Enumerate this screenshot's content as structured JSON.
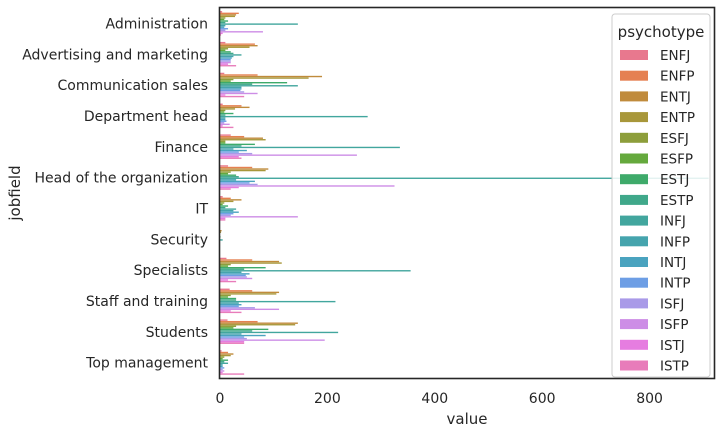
{
  "chart_data": {
    "type": "bar",
    "orientation": "horizontal",
    "xlabel": "value",
    "ylabel": "jobfield",
    "xlim": [
      0,
      920
    ],
    "xticks": [
      0,
      200,
      400,
      600,
      800
    ],
    "grid": false,
    "legend": {
      "title": "psychotype",
      "placement": "top-right"
    },
    "categories": [
      "Administration",
      "Advertising and marketing",
      "Communication sales",
      "Department head",
      "Finance",
      "Head of the organization",
      "IT",
      "Security",
      "Specialists",
      "Staff and training",
      "Students",
      "Top management"
    ],
    "series": [
      {
        "name": "ENFJ",
        "color": "#e8788e",
        "values": [
          4,
          10,
          8,
          5,
          20,
          15,
          5,
          0,
          12,
          18,
          14,
          3
        ]
      },
      {
        "name": "ENFP",
        "color": "#e58152",
        "values": [
          35,
          65,
          70,
          40,
          45,
          60,
          20,
          0,
          60,
          60,
          70,
          15
        ]
      },
      {
        "name": "ENTJ",
        "color": "#c08b3c",
        "values": [
          30,
          70,
          190,
          55,
          80,
          90,
          40,
          3,
          110,
          110,
          145,
          25
        ]
      },
      {
        "name": "ENTP",
        "color": "#a8973a",
        "values": [
          28,
          55,
          165,
          28,
          85,
          85,
          25,
          2,
          115,
          105,
          140,
          20
        ]
      },
      {
        "name": "ESFJ",
        "color": "#8d9e3b",
        "values": [
          10,
          15,
          25,
          10,
          10,
          20,
          8,
          0,
          20,
          20,
          30,
          8
        ]
      },
      {
        "name": "ESFP",
        "color": "#65a93d",
        "values": [
          8,
          10,
          20,
          8,
          10,
          15,
          5,
          0,
          15,
          15,
          25,
          5
        ]
      },
      {
        "name": "ESTJ",
        "color": "#3eaa6a",
        "values": [
          15,
          20,
          125,
          25,
          65,
          30,
          15,
          1,
          85,
          30,
          90,
          15
        ]
      },
      {
        "name": "ESTP",
        "color": "#40a88a",
        "values": [
          10,
          25,
          60,
          10,
          40,
          35,
          10,
          0,
          45,
          30,
          60,
          8
        ]
      },
      {
        "name": "INFJ",
        "color": "#42a69e",
        "values": [
          145,
          40,
          145,
          275,
          335,
          910,
          30,
          5,
          355,
          215,
          220,
          15
        ]
      },
      {
        "name": "INFP",
        "color": "#45a4ad",
        "values": [
          10,
          25,
          40,
          10,
          25,
          30,
          25,
          0,
          40,
          35,
          40,
          5
        ]
      },
      {
        "name": "INTJ",
        "color": "#4aa3bf",
        "values": [
          8,
          22,
          40,
          10,
          50,
          65,
          35,
          0,
          55,
          40,
          85,
          5
        ]
      },
      {
        "name": "INTP",
        "color": "#6d9ee5",
        "values": [
          15,
          20,
          38,
          12,
          35,
          55,
          25,
          0,
          48,
          35,
          45,
          8
        ]
      },
      {
        "name": "ISFJ",
        "color": "#a99ae8",
        "values": [
          10,
          20,
          45,
          8,
          60,
          70,
          20,
          0,
          50,
          65,
          50,
          5
        ]
      },
      {
        "name": "ISFP",
        "color": "#cd8de6",
        "values": [
          80,
          20,
          70,
          18,
          255,
          325,
          145,
          0,
          60,
          110,
          195,
          8
        ]
      },
      {
        "name": "ISTJ",
        "color": "#e67de0",
        "values": [
          5,
          15,
          10,
          5,
          35,
          35,
          10,
          0,
          15,
          20,
          45,
          5
        ]
      },
      {
        "name": "ISTP",
        "color": "#e87cba",
        "values": [
          2,
          30,
          45,
          25,
          40,
          20,
          10,
          0,
          30,
          40,
          45,
          45
        ]
      }
    ]
  }
}
